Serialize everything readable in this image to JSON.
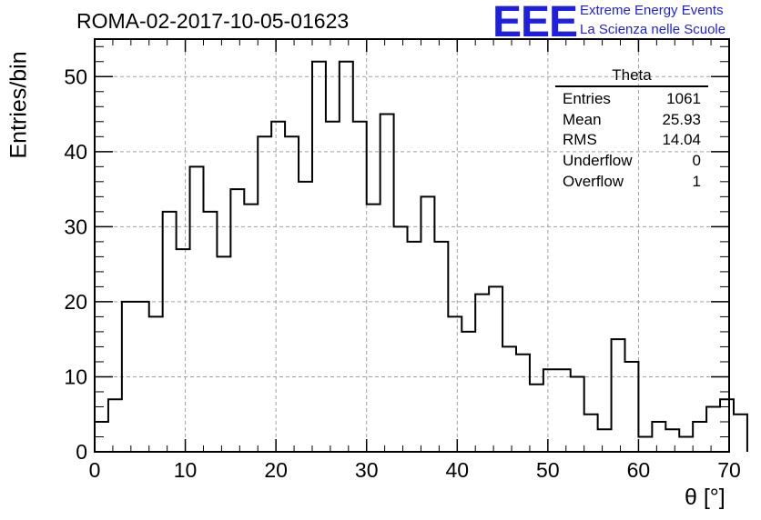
{
  "page": {
    "title": "ROMA-02-2017-10-05-01623"
  },
  "logo": {
    "text": "EEE",
    "line1": "Extreme Energy Events",
    "line2": "La Scienza nelle Scuole",
    "color": "#1f1fe0"
  },
  "stats": {
    "title": "Theta",
    "rows": [
      {
        "label": "Entries",
        "value": "1061"
      },
      {
        "label": "Mean",
        "value": "25.93"
      },
      {
        "label": "RMS",
        "value": "14.04"
      },
      {
        "label": "Underflow",
        "value": "0"
      },
      {
        "label": "Overflow",
        "value": "1"
      }
    ]
  },
  "chart_data": {
    "type": "bar",
    "style": "step-histogram",
    "title": "ROMA-02-2017-10-05-01623",
    "xlabel": "θ [°]",
    "ylabel": "Entries/bin",
    "xlim": [
      0,
      70
    ],
    "ylim": [
      0,
      55
    ],
    "bin_width": 1.5,
    "x_start": 0,
    "x_ticks": [
      "0",
      "10",
      "20",
      "30",
      "40",
      "50",
      "60",
      "70"
    ],
    "y_ticks": [
      "0",
      "10",
      "20",
      "30",
      "40",
      "50"
    ],
    "x_tick_values": [
      0,
      10,
      20,
      30,
      40,
      50,
      60,
      70
    ],
    "y_tick_values": [
      0,
      10,
      20,
      30,
      40,
      50
    ],
    "grid": true,
    "values": [
      4,
      7,
      20,
      20,
      18,
      32,
      27,
      38,
      32,
      26,
      35,
      33,
      42,
      44,
      42,
      36,
      52,
      44,
      52,
      44,
      33,
      45,
      30,
      28,
      34,
      28,
      18,
      16,
      21,
      22,
      14,
      13,
      9,
      11,
      11,
      10,
      5,
      3,
      15,
      12,
      2,
      4,
      3,
      2,
      4,
      6,
      7,
      5
    ]
  }
}
